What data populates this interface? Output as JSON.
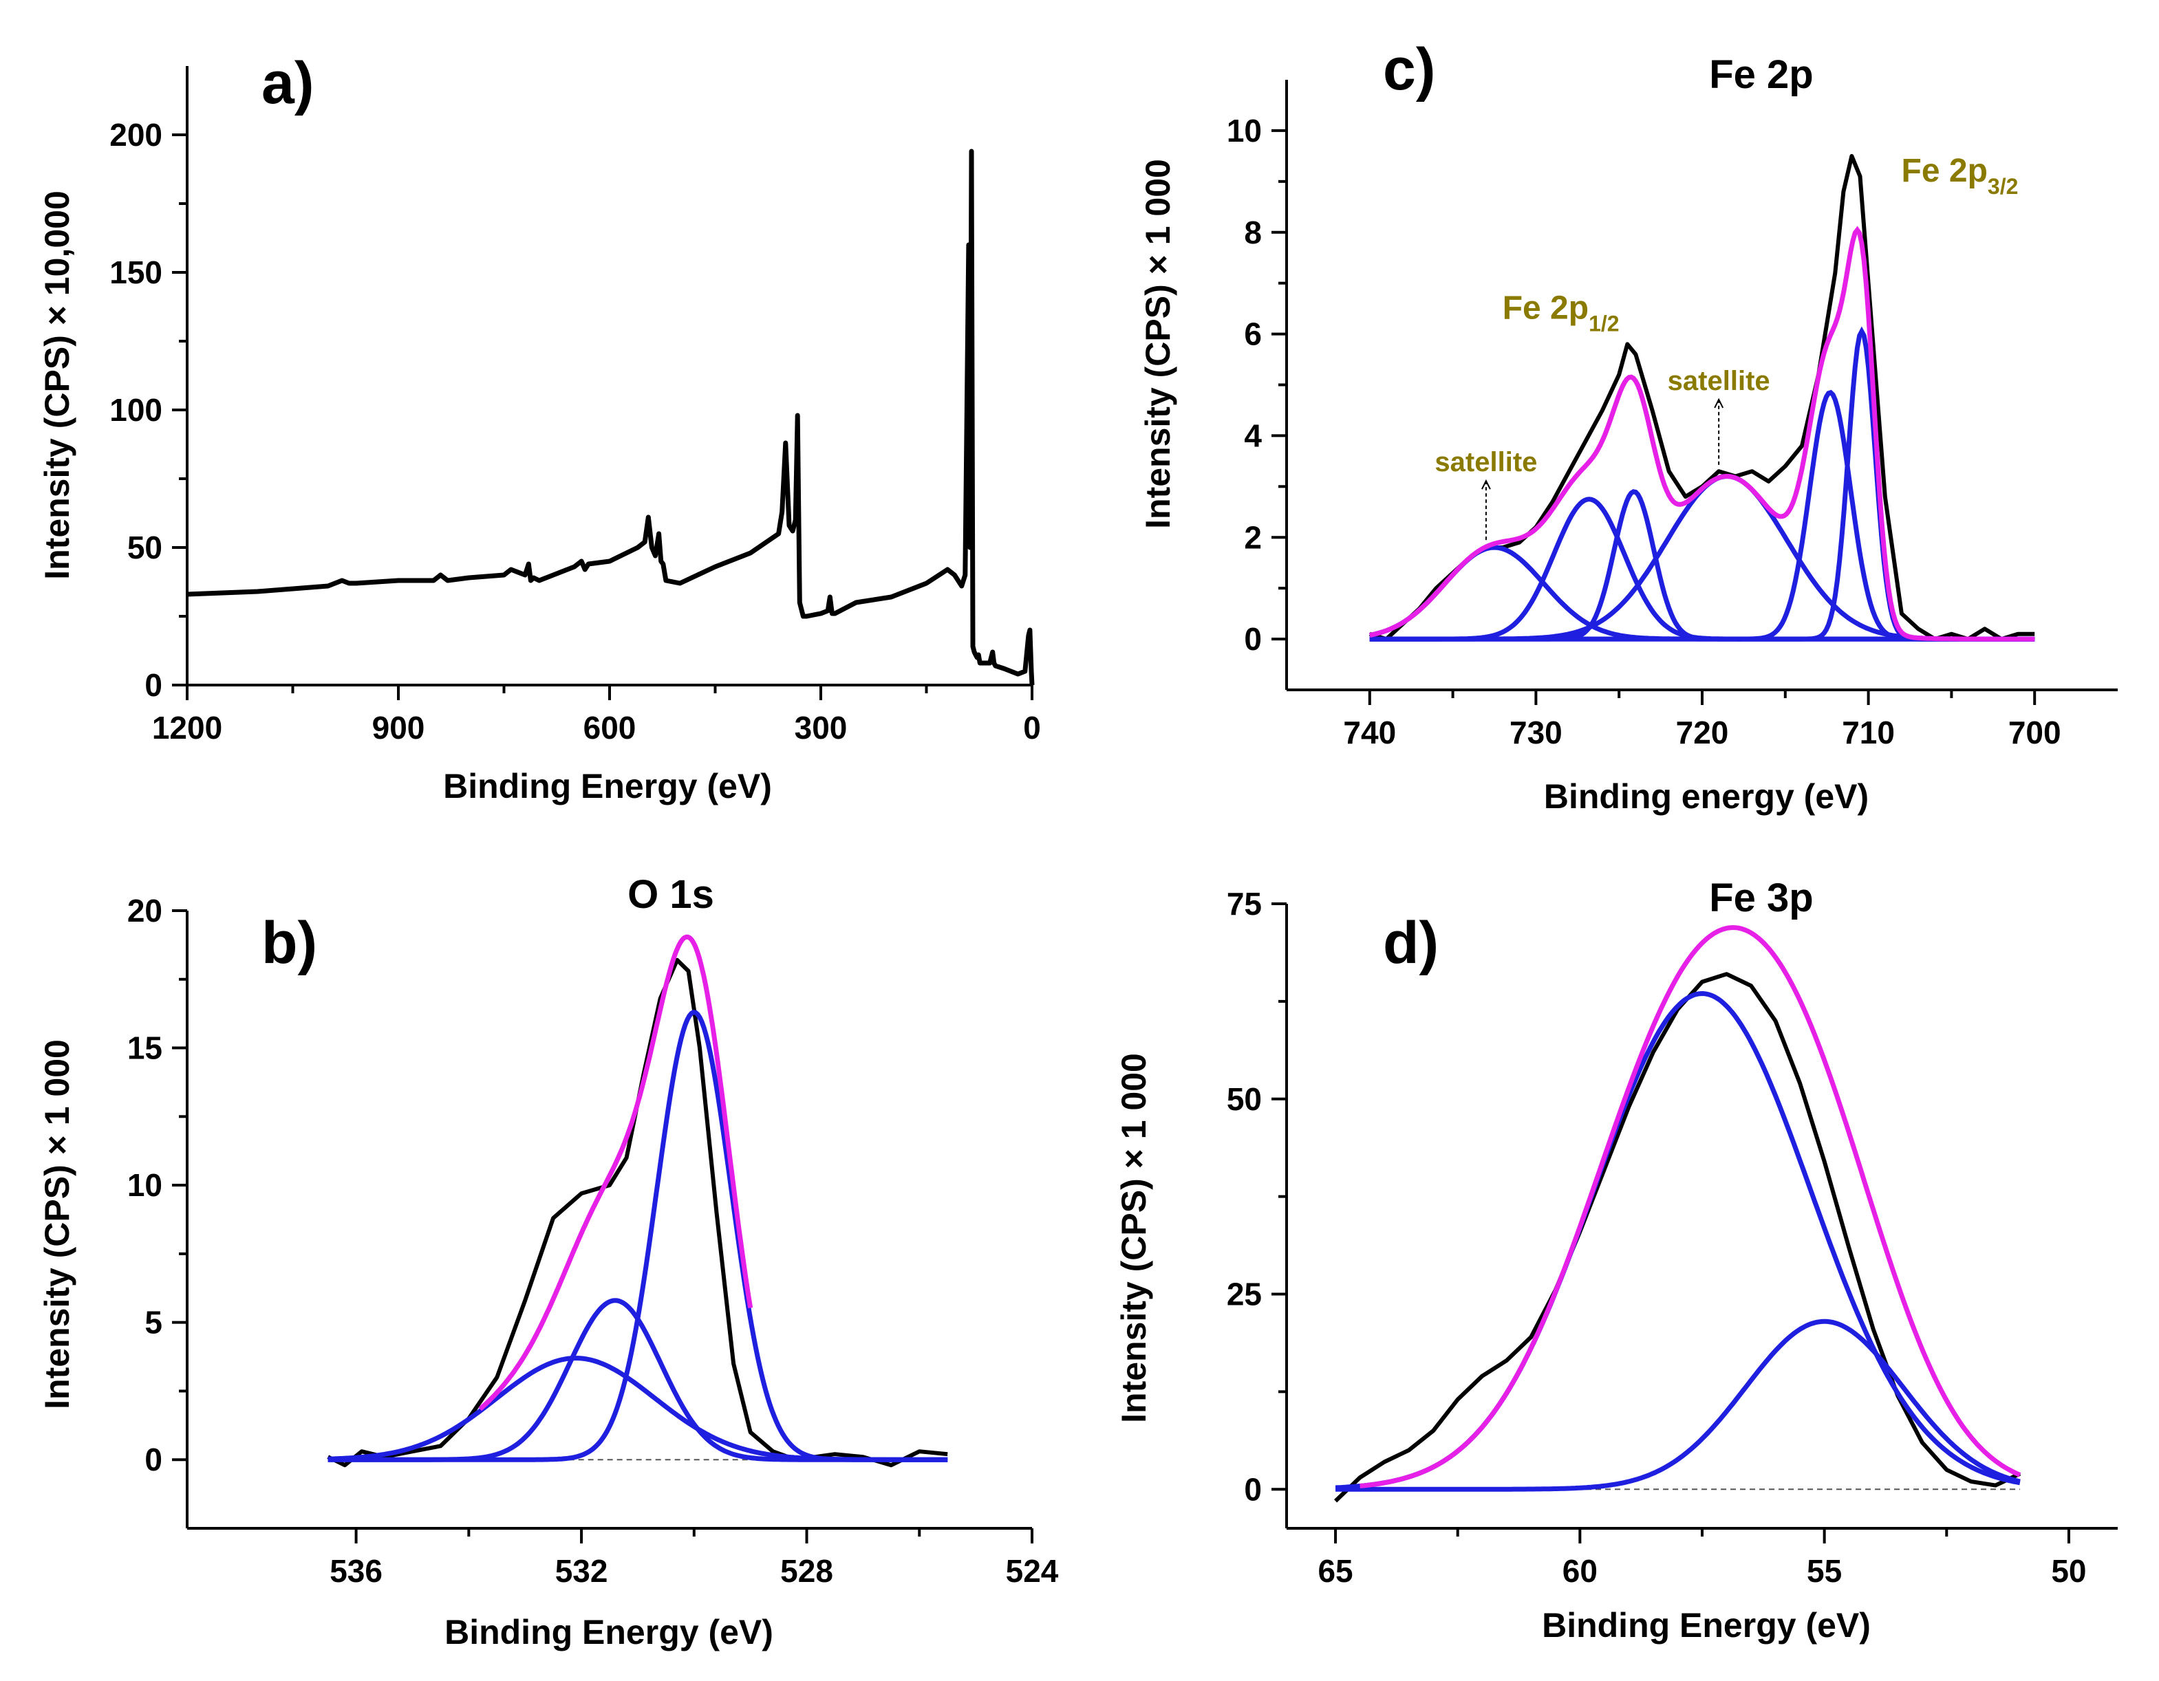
{
  "chart_data": [
    {
      "id": "a",
      "type": "line",
      "panel_label": "a)",
      "title": "",
      "xlabel": "Binding Energy (eV)",
      "ylabel": "Intensity (CPS) × 10,000",
      "xlim": [
        1200,
        0
      ],
      "ylim": [
        0,
        225
      ],
      "xticks": [
        "1200",
        "900",
        "600",
        "300",
        "0"
      ],
      "yticks": [
        "0",
        "50",
        "100",
        "150",
        "200"
      ],
      "xtick_values": [
        1200,
        900,
        600,
        300,
        0
      ],
      "ytick_values": [
        0,
        50,
        100,
        150,
        200
      ],
      "series": [
        {
          "name": "survey spectrum",
          "color": "#000000",
          "x": [
            1200,
            1100,
            1000,
            980,
            970,
            960,
            900,
            850,
            840,
            830,
            800,
            750,
            740,
            720,
            715,
            712,
            708,
            700,
            650,
            640,
            635,
            630,
            600,
            560,
            550,
            545,
            540,
            535,
            530,
            527,
            524,
            520,
            500,
            450,
            400,
            360,
            355,
            350,
            345,
            340,
            336,
            333,
            330,
            325,
            320,
            300,
            290,
            287,
            284,
            280,
            250,
            200,
            150,
            120,
            110,
            100,
            95,
            90,
            88,
            86,
            84,
            82,
            80,
            78,
            76,
            74,
            60,
            56,
            54,
            52,
            40,
            20,
            10,
            5,
            3,
            1,
            0
          ],
          "y": [
            33,
            34,
            36,
            38,
            37,
            37,
            38,
            38,
            40,
            38,
            39,
            40,
            42,
            40,
            44,
            38,
            39,
            38,
            43,
            45,
            42,
            44,
            45,
            50,
            52,
            61,
            50,
            47,
            55,
            45,
            44,
            38,
            37,
            43,
            48,
            55,
            63,
            88,
            58,
            56,
            60,
            98,
            30,
            25,
            25,
            26,
            27,
            32,
            26,
            26,
            30,
            32,
            37,
            42,
            40,
            36,
            40,
            160,
            50,
            194,
            14,
            12,
            11,
            10,
            11,
            8,
            8,
            12,
            8,
            7,
            6,
            4,
            5,
            18,
            20,
            5,
            0
          ]
        }
      ]
    },
    {
      "id": "b",
      "type": "line",
      "panel_label": "b)",
      "title": "O 1s",
      "xlabel": "Binding Energy (eV)",
      "ylabel": "Intensity (CPS) × 1 000",
      "xlim": [
        539,
        524
      ],
      "ylim": [
        -2.5,
        20
      ],
      "xticks": [
        "536",
        "532",
        "528",
        "524"
      ],
      "yticks": [
        "0",
        "5",
        "10",
        "15",
        "20"
      ],
      "xtick_values": [
        536,
        532,
        528,
        524
      ],
      "ytick_values": [
        0,
        5,
        10,
        15,
        20
      ],
      "baseline": {
        "x": [
          536.5,
          525.5
        ],
        "y": [
          0,
          0
        ],
        "color": "#555555"
      },
      "components": [
        {
          "name": "O 1s peak 1",
          "color": "#1f1fe0",
          "center": 530.0,
          "height": 16.3,
          "fwhm": 1.55
        },
        {
          "name": "O 1s peak 2",
          "color": "#1f1fe0",
          "center": 531.4,
          "height": 5.8,
          "fwhm": 1.9
        },
        {
          "name": "O 1s peak 3",
          "color": "#1f1fe0",
          "center": 532.1,
          "height": 3.7,
          "fwhm": 3.3
        }
      ],
      "envelope": {
        "name": "envelope",
        "color": "#e620e6",
        "x_range": [
          533.8,
          529.0
        ]
      },
      "series": [
        {
          "name": "experimental",
          "color": "#000000",
          "x": [
            536.5,
            536.2,
            535.9,
            535.5,
            535,
            534.5,
            534,
            533.5,
            533,
            532.5,
            532,
            531.5,
            531.2,
            530.9,
            530.6,
            530.3,
            530.1,
            529.9,
            529.6,
            529.3,
            529,
            528.6,
            528.2,
            527.5,
            527,
            526.5,
            526,
            525.5
          ],
          "y": [
            0.1,
            -0.2,
            0.3,
            0.1,
            0.3,
            0.5,
            1.5,
            3.0,
            5.8,
            8.8,
            9.7,
            10.0,
            11.0,
            14.0,
            16.8,
            18.2,
            17.8,
            15.0,
            9.0,
            3.5,
            1.0,
            0.3,
            0.0,
            0.2,
            0.1,
            -0.2,
            0.3,
            0.2
          ]
        }
      ]
    },
    {
      "id": "c",
      "type": "line",
      "panel_label": "c)",
      "title": "Fe 2p",
      "xlabel": "Binding energy (eV)",
      "ylabel": "Intensity (CPS) × 1 000",
      "xlim": [
        745,
        695
      ],
      "ylim": [
        -1,
        11
      ],
      "xticks": [
        "740",
        "730",
        "720",
        "710",
        "700"
      ],
      "yticks": [
        "0",
        "2",
        "4",
        "6",
        "8",
        "10"
      ],
      "xtick_values": [
        740,
        730,
        720,
        710,
        700
      ],
      "ytick_values": [
        0,
        2,
        4,
        6,
        8,
        10
      ],
      "annotations": [
        {
          "text": "Fe 2p",
          "subscript": "1/2",
          "x": 728.5,
          "y": 6.3,
          "color": "#8a7a00"
        },
        {
          "text": "Fe 2p",
          "subscript": "3/2",
          "x": 704.5,
          "y": 9.0,
          "color": "#8a7a00"
        },
        {
          "text": "satellite",
          "subscript": "",
          "x": 733.0,
          "y": 3.3,
          "color": "#8a7a00",
          "arrow_to": [
            733.0,
            1.9
          ]
        },
        {
          "text": "satellite",
          "subscript": "",
          "x": 719.0,
          "y": 4.9,
          "color": "#8a7a00",
          "arrow_to": [
            719.0,
            3.4
          ]
        }
      ],
      "components": [
        {
          "name": "satellite 1",
          "color": "#1f1fe0",
          "center": 732.5,
          "height": 1.8,
          "fwhm": 7.0
        },
        {
          "name": "Fe 2p1/2 a",
          "color": "#1f1fe0",
          "center": 726.8,
          "height": 2.75,
          "fwhm": 5.0
        },
        {
          "name": "Fe 2p1/2 b",
          "color": "#1f1fe0",
          "center": 724.1,
          "height": 2.9,
          "fwhm": 2.8
        },
        {
          "name": "satellite 2",
          "color": "#1f1fe0",
          "center": 718.5,
          "height": 3.2,
          "fwhm": 8.5
        },
        {
          "name": "Fe 2p3/2 a",
          "color": "#1f1fe0",
          "center": 712.3,
          "height": 4.85,
          "fwhm": 2.9
        },
        {
          "name": "Fe 2p3/2 b",
          "color": "#1f1fe0",
          "center": 710.4,
          "height": 6.05,
          "fwhm": 1.9
        }
      ],
      "envelope": {
        "name": "envelope",
        "color": "#e620e6",
        "x_range": [
          740,
          700
        ]
      },
      "series": [
        {
          "name": "experimental",
          "color": "#000000",
          "x": [
            740,
            739,
            738,
            737,
            736,
            735,
            734,
            733,
            732,
            731,
            730,
            729,
            728,
            727,
            726,
            725,
            724.5,
            724,
            723,
            722,
            721,
            720,
            719,
            718,
            717,
            716,
            715,
            714,
            713,
            712,
            711.5,
            711,
            710.5,
            710,
            709,
            708,
            707,
            706,
            705,
            704,
            703,
            702,
            701,
            700
          ],
          "y": [
            0.1,
            0.0,
            0.3,
            0.6,
            1.0,
            1.3,
            1.6,
            1.8,
            1.8,
            1.9,
            2.2,
            2.7,
            3.3,
            3.9,
            4.5,
            5.2,
            5.8,
            5.6,
            4.5,
            3.3,
            2.8,
            3.0,
            3.3,
            3.2,
            3.3,
            3.1,
            3.4,
            3.8,
            5.2,
            7.2,
            8.8,
            9.5,
            9.1,
            7.0,
            2.8,
            0.5,
            0.2,
            0.0,
            0.1,
            0.0,
            0.2,
            0.0,
            0.1,
            0.1
          ]
        }
      ]
    },
    {
      "id": "d",
      "type": "line",
      "panel_label": "d)",
      "title": "Fe 3p",
      "xlabel": "Binding Energy (eV)",
      "ylabel": "Intensity (CPS) × 1 000",
      "xlim": [
        66,
        49
      ],
      "ylim": [
        -5,
        75
      ],
      "xticks": [
        "65",
        "60",
        "55",
        "50"
      ],
      "yticks": [
        "0",
        "25",
        "50",
        "75"
      ],
      "xtick_values": [
        65,
        60,
        55,
        50
      ],
      "ytick_values": [
        0,
        25,
        50,
        75
      ],
      "baseline": {
        "x": [
          65,
          51
        ],
        "y": [
          0,
          0
        ],
        "color": "#555555"
      },
      "components": [
        {
          "name": "Fe 3p peak 1",
          "color": "#1f1fe0",
          "center": 57.5,
          "height": 63.5,
          "fwhm": 5.2
        },
        {
          "name": "Fe 3p peak 2",
          "color": "#1f1fe0",
          "center": 55.0,
          "height": 21.5,
          "fwhm": 3.8
        }
      ],
      "envelope": {
        "name": "envelope",
        "color": "#e620e6",
        "x_range": [
          64.5,
          51
        ]
      },
      "series": [
        {
          "name": "experimental",
          "color": "#000000",
          "x": [
            65,
            64.5,
            64,
            63.5,
            63,
            62.5,
            62,
            61.5,
            61,
            60.5,
            60,
            59.5,
            59,
            58.5,
            58,
            57.5,
            57,
            56.5,
            56,
            55.5,
            55,
            54.5,
            54,
            53.5,
            53,
            52.5,
            52,
            51.5,
            51
          ],
          "y": [
            -1.5,
            1.5,
            3.5,
            5.0,
            7.5,
            11.5,
            14.5,
            16.5,
            19.5,
            25.5,
            33.0,
            41.0,
            49.0,
            56.0,
            61.5,
            65.0,
            66.0,
            64.5,
            60.0,
            52.0,
            42.0,
            31.0,
            20.5,
            12.0,
            6.0,
            2.5,
            1.0,
            0.5,
            2.0
          ]
        }
      ]
    }
  ]
}
